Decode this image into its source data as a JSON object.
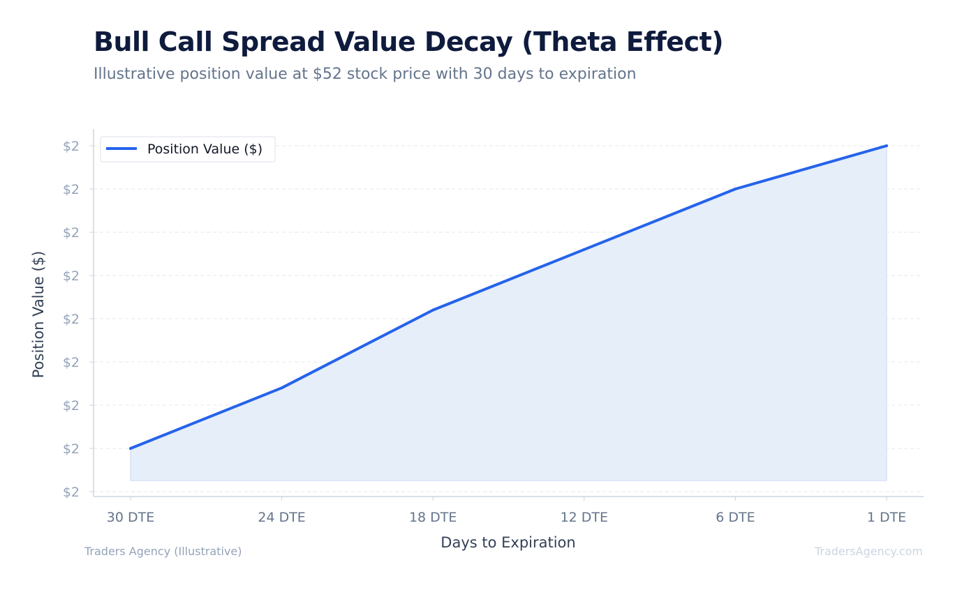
{
  "title": "Bull Call Spread Value Decay (Theta Effect)",
  "subtitle": "Illustrative position value at $52 stock price with 30 days to expiration",
  "footer": {
    "source": "Traders Agency (Illustrative)",
    "watermark": "TradersAgency.com"
  },
  "chart_data": {
    "type": "area",
    "categories": [
      "30 DTE",
      "24 DTE",
      "18 DTE",
      "12 DTE",
      "6 DTE",
      "1 DTE"
    ],
    "series": [
      {
        "name": "Position Value ($)",
        "values": [
          2.2,
          2.34,
          2.52,
          2.66,
          2.8,
          2.9
        ]
      }
    ],
    "xlabel": "Days to Expiration",
    "ylabel": "Position Value ($)",
    "ytick_labels": [
      "$2",
      "$2",
      "$2",
      "$2",
      "$2",
      "$2",
      "$2",
      "$2",
      "$2"
    ],
    "ylim": [
      2.1,
      2.9
    ],
    "grid": true,
    "legend": "top-left",
    "colors": {
      "line": "#2563eb",
      "fill": "#e6eefa",
      "grid": "#e5e7eb",
      "axis": "#cbd5e1"
    }
  }
}
